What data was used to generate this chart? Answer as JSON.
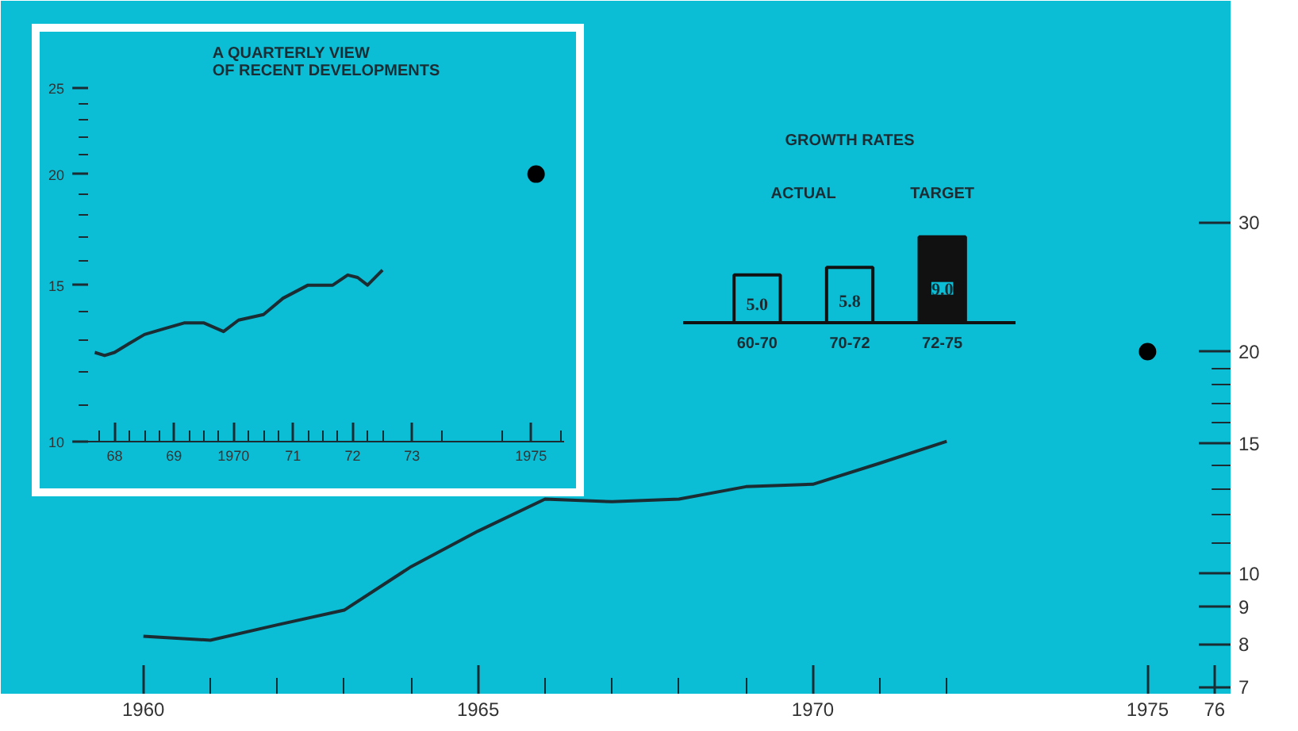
{
  "chart_data": [
    {
      "type": "line",
      "x": [
        1960,
        1961,
        1962,
        1963,
        1964,
        1965,
        1966,
        1967,
        1968,
        1969,
        1970,
        1971,
        1972
      ],
      "log": true,
      "xlim": [
        1957.87,
        1976.24
      ],
      "ylim": [
        6.85,
        60
      ],
      "xticks": [
        1960,
        {
          "value": 1961,
          "label": null
        },
        {
          "value": 1962,
          "label": null
        },
        {
          "value": 1963,
          "label": null
        },
        {
          "value": 1964,
          "label": null
        },
        1965,
        {
          "value": 1966,
          "label": null
        },
        {
          "value": 1967,
          "label": null
        },
        {
          "value": 1968,
          "label": null
        },
        {
          "value": 1969,
          "label": null
        },
        1970,
        {
          "value": 1971,
          "label": null
        },
        {
          "value": 1972,
          "label": null
        },
        1975,
        {
          "value": 1976,
          "label": "76"
        }
      ],
      "yticks": [
        7,
        8,
        9,
        10,
        {
          "value": 11,
          "label": null
        },
        {
          "value": 12,
          "label": null
        },
        {
          "value": 13,
          "label": null
        },
        {
          "value": 14,
          "label": null
        },
        15,
        {
          "value": 16,
          "label": null
        },
        {
          "value": 17,
          "label": null
        },
        {
          "value": 18,
          "label": null
        },
        {
          "value": 19,
          "label": null
        },
        20,
        30
      ],
      "series": [
        {
          "type": "line",
          "color": "#1b2d33",
          "values": [
            8.2,
            8.1,
            8.5,
            8.9,
            10.2,
            11.4,
            12.6,
            12.5,
            12.6,
            13.1,
            13.2,
            14.1,
            15.1
          ]
        },
        {
          "type": "scatter",
          "marker": "circle",
          "color": "#000000",
          "x": [
            1975
          ],
          "values": [
            20
          ]
        }
      ]
    },
    {
      "type": "line",
      "title": "A QUARTERLY VIEW\nOF RECENT DEVELOPMENTS",
      "log": true,
      "xlim": [
        "1968-01-20",
        "1976-01-20"
      ],
      "ylim": [
        10,
        25
      ],
      "x": [
        "1968-03",
        "1968-05",
        "1968-07",
        "1968-10",
        "1969-01",
        "1969-05",
        "1969-09",
        "1970-01",
        "1970-05",
        "1970-08",
        "1971-01",
        "1971-05",
        "1971-10",
        "1972-03",
        "1972-06",
        "1972-08",
        "1972-10",
        "1973-01"
      ],
      "xticks": [
        {
          "value": "1968-04-01",
          "label": null
        },
        {
          "value": "1968-07-01",
          "label": "68"
        },
        {
          "value": "1968-10-01",
          "label": null
        },
        {
          "value": "1969-01-01",
          "label": null
        },
        {
          "value": "1969-04-01",
          "label": null
        },
        {
          "value": "1969-07-01",
          "label": "69"
        },
        {
          "value": "1969-10-01",
          "label": null
        },
        {
          "value": "1970-01-01",
          "label": null
        },
        {
          "value": "1970-04-01",
          "label": null
        },
        {
          "value": "1970-07-01",
          "label": "1970"
        },
        {
          "value": "1970-10-01",
          "label": null
        },
        {
          "value": "1971-01-01",
          "label": null
        },
        {
          "value": "1971-04-01",
          "label": null
        },
        {
          "value": "1971-07-01",
          "label": "71"
        },
        {
          "value": "1971-10-01",
          "label": null
        },
        {
          "value": "1972-01-01",
          "label": null
        },
        {
          "value": "1972-04-01",
          "label": null
        },
        {
          "value": "1972-07-01",
          "label": "72"
        },
        {
          "value": "1972-10-01",
          "label": null
        },
        {
          "value": "1973-01-01",
          "label": null
        },
        {
          "value": "1973-07-01",
          "label": "73"
        },
        {
          "value": "1974-01-01",
          "label": null
        },
        {
          "value": "1975-01-01",
          "label": null
        },
        {
          "value": "1975-07-01",
          "label": "1975"
        },
        {
          "value": "1976-01-01",
          "label": null
        }
      ],
      "yticks": [
        10,
        {
          "value": 11,
          "label": null
        },
        {
          "value": 12,
          "label": null
        },
        {
          "value": 13,
          "label": null
        },
        {
          "value": 14,
          "label": null
        },
        15,
        {
          "value": 16,
          "label": null
        },
        {
          "value": 17,
          "label": null
        },
        {
          "value": 18,
          "label": null
        },
        {
          "value": 19,
          "label": null
        },
        20,
        {
          "value": 21,
          "label": null
        },
        {
          "value": 22,
          "label": null
        },
        {
          "value": 23,
          "label": null
        },
        {
          "value": 24,
          "label": null
        },
        25
      ],
      "series": [
        {
          "type": "line",
          "color": "#1b2d33",
          "values": [
            12.6,
            12.5,
            12.6,
            12.9,
            13.2,
            13.4,
            13.6,
            13.6,
            13.3,
            13.7,
            13.9,
            14.5,
            15.0,
            15.0,
            15.4,
            15.3,
            15.0,
            15.6
          ]
        },
        {
          "type": "scatter",
          "marker": "circle",
          "color": "#000000",
          "x": [
            "1975-08"
          ],
          "values": [
            20
          ]
        }
      ]
    },
    {
      "type": "bar",
      "title": "GROWTH RATES",
      "categories": [
        "60-70",
        "70-72",
        "72-75"
      ],
      "values": [
        5.0,
        5.8,
        9.0
      ],
      "value_labels": [
        "5.0",
        "5.8",
        "9.0"
      ],
      "colors": [
        "#0bbdd5",
        "#0bbdd5",
        "#111111"
      ],
      "annotations": [
        "ACTUAL",
        "TARGET"
      ]
    }
  ]
}
